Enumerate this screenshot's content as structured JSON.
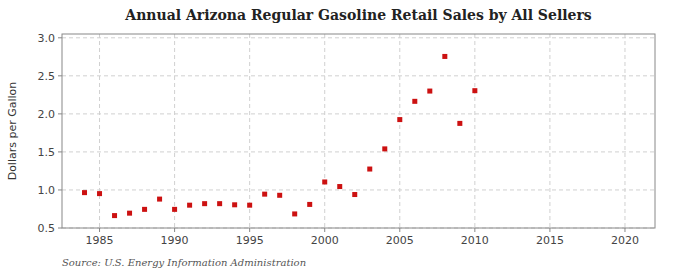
{
  "chart_data": {
    "type": "scatter",
    "title": "Annual Arizona Regular Gasoline Retail Sales by All Sellers",
    "ylabel": "Dollars per Gallon",
    "source": "Source: U.S. Energy Information Administration",
    "x": [
      1984,
      1985,
      1986,
      1987,
      1988,
      1989,
      1990,
      1991,
      1992,
      1993,
      1994,
      1995,
      1996,
      1997,
      1998,
      1999,
      2000,
      2001,
      2002,
      2003,
      2004,
      2005,
      2006,
      2007,
      2008,
      2009,
      2010
    ],
    "values": [
      0.965,
      0.952,
      0.663,
      0.695,
      0.745,
      0.88,
      0.745,
      0.8,
      0.82,
      0.82,
      0.805,
      0.8,
      0.945,
      0.93,
      0.685,
      0.81,
      1.105,
      1.045,
      0.94,
      1.275,
      1.54,
      1.925,
      2.165,
      2.3,
      2.755,
      1.875,
      2.305
    ],
    "color": "#cc1111",
    "marker": "square",
    "xlim": [
      1982.5,
      2022
    ],
    "ylim": [
      0.5,
      3.05
    ],
    "xticks": [
      1985,
      1990,
      1995,
      2000,
      2005,
      2010,
      2015,
      2020
    ],
    "yticks": [
      0.5,
      {
        "value": 1.0,
        "label": "1.0"
      },
      1.5,
      {
        "value": 2.0,
        "label": "2.0"
      },
      2.5,
      {
        "value": 3.0,
        "label": "3.0"
      }
    ],
    "grid": true
  }
}
